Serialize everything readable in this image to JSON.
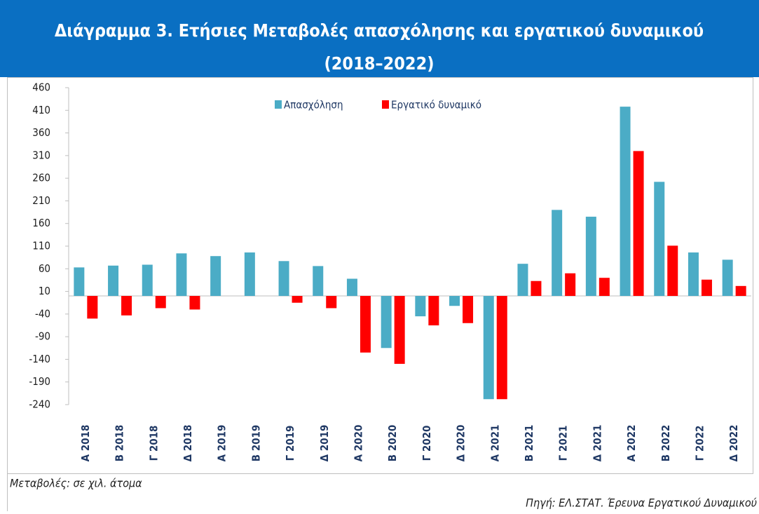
{
  "chart_data": {
    "type": "bar",
    "title": "Διάγραμμα 3. Ετήσιες Μεταβολές απασχόλησης και εργατικού δυναμικού",
    "subtitle": "(2018–2022)",
    "categories": [
      "Α 2018",
      "Β 2018",
      "Γ 2018",
      "Δ 2018",
      "Α 2019",
      "Β 2019",
      "Γ 2019",
      "Δ 2019",
      "Α 2020",
      "Β 2020",
      "Γ 2020",
      "Δ 2020",
      "Α 2021",
      "Β 2021",
      "Γ 2021",
      "Δ 2021",
      "Α 2022",
      "Β 2022",
      "Γ 2022",
      "Δ 2022"
    ],
    "series": [
      {
        "name": "Απασχόληση",
        "color": "#4bacc6",
        "values": [
          63,
          67,
          69,
          94,
          88,
          96,
          77,
          66,
          38,
          -115,
          -45,
          -22,
          -228,
          71,
          190,
          175,
          418,
          252,
          96,
          80
        ]
      },
      {
        "name": "Εργατικό δυναμικό",
        "color": "#ff0000",
        "values": [
          -50,
          -43,
          -27,
          -30,
          0,
          0,
          -15,
          -27,
          -125,
          -150,
          -65,
          -60,
          -228,
          33,
          50,
          40,
          320,
          111,
          36,
          22
        ]
      }
    ],
    "ylim": [
      -240,
      460
    ],
    "yticks": [
      460,
      410,
      360,
      310,
      260,
      210,
      160,
      110,
      60,
      10,
      -40,
      -90,
      -140,
      -190,
      -240
    ],
    "grid": false,
    "legend": "top",
    "note": "Μεταβολές: σε χιλ. άτομα",
    "source": "Πηγή: ΕΛ.ΣΤΑΤ. Έρευνα Εργατικού Δυναμικού"
  }
}
